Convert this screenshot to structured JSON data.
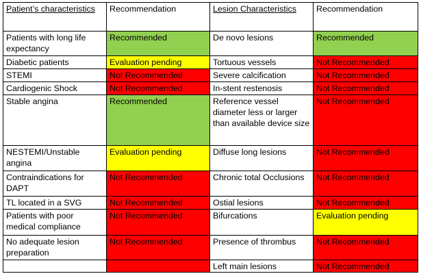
{
  "headers": {
    "patient": "Patient’s characteristics",
    "recommendation_1": "Recommendation",
    "lesion": "Lesion Characteristics",
    "recommendation_2": "Recommendation"
  },
  "status_colors": {
    "Recommended": "#92d050",
    "Evaluation pending": "#ffff00",
    "Not Recommended": "#ff0000"
  },
  "rows": [
    {
      "patient": "Patients with long life expectancy",
      "patient_rec": "Recommended",
      "lesion": "De novo lesions",
      "lesion_rec": "Recommended"
    },
    {
      "patient": "Diabetic patients",
      "patient_rec": "Evaluation pending",
      "lesion": "Tortuous vessels",
      "lesion_rec": "Not Recommended"
    },
    {
      "patient": "STEMI",
      "patient_rec": "Not Recommended",
      "lesion": "Severe calcification",
      "lesion_rec": "Not Recommended"
    },
    {
      "patient": "Cardiogenic Shock",
      "patient_rec": "Not Recommended",
      "lesion": "In-stent restenosis",
      "lesion_rec": "Not Recommended"
    },
    {
      "patient": "Stable angina",
      "patient_rec": "Recommended",
      "lesion": "Reference vessel diameter less or larger than available device size",
      "lesion_rec": "Not Recommended"
    },
    {
      "patient": "NESTEMI/Unstable angina",
      "patient_rec": "Evaluation pending",
      "lesion": "Diffuse long lesions",
      "lesion_rec": "Not Recommended"
    },
    {
      "patient": "Contraindications for DAPT",
      "patient_rec": "Not Recommended",
      "lesion": "Chronic total Occlusions",
      "lesion_rec": "Not Recommended"
    },
    {
      "patient": "TL located in a SVG",
      "patient_rec": "Not Recommended",
      "lesion": "Ostial lesions",
      "lesion_rec": "Not Recommended"
    },
    {
      "patient": "Patients with poor medical compliance",
      "patient_rec": "Not Recommended",
      "lesion": "Bifurcations",
      "lesion_rec": "Evaluation pending"
    },
    {
      "patient": "No adequate lesion preparation",
      "patient_rec": "Not Recommended",
      "lesion": "Presence of thrombus",
      "lesion_rec": "Not Recommended"
    },
    {
      "patient": "",
      "patient_rec": "",
      "patient_rec_color": "Not Recommended",
      "lesion": "Left main lesions",
      "lesion_rec": "Not Recommended"
    }
  ]
}
